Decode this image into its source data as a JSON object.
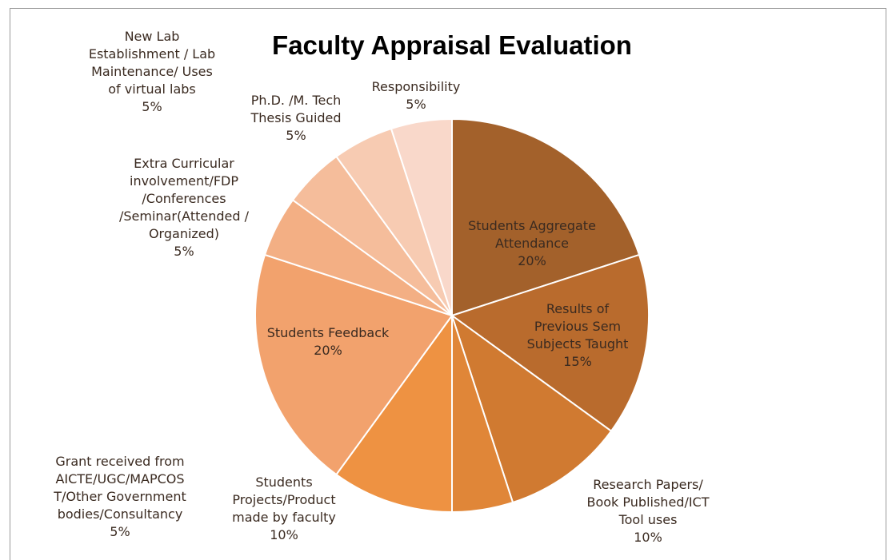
{
  "chart_data": {
    "type": "pie",
    "title": "Faculty Appraisal Evaluation",
    "categories": [
      "Students Aggregate\nAttendance",
      "Results of\nPrevious Sem\nSubjects Taught",
      "Research Papers/\nBook Published/ICT\nTool uses",
      "Grant received from\nAICTE/UGC/MAPCOS\nT/Other Government\nbodies/Consultancy",
      "Students\nProjects/Product\nmade by faculty",
      "Students Feedback",
      "Extra Curricular\ninvolvement/FDP\n/Conferences\n/Seminar(Attended /\nOrganized)",
      "New Lab\nEstablishment / Lab\nMaintenance/ Uses\nof virtual labs",
      "Ph.D. /M. Tech\nThesis Guided",
      "Responsibility"
    ],
    "values": [
      20,
      15,
      10,
      5,
      10,
      20,
      5,
      5,
      5,
      5
    ],
    "value_labels": [
      "20%",
      "15%",
      "10%",
      "5%",
      "10%",
      "20%",
      "5%",
      "5%",
      "5%",
      "5%"
    ],
    "colors": [
      "#a3612b",
      "#b96b2d",
      "#d07a31",
      "#e08638",
      "#ee9242",
      "#f2a26d",
      "#f3af84",
      "#f5bd9b",
      "#f7cbb2",
      "#f9d8ca"
    ]
  }
}
